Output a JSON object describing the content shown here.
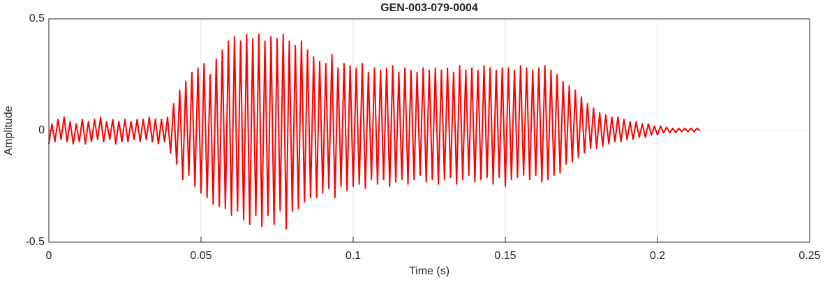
{
  "chart_data": {
    "type": "line",
    "title": "GEN-003-079-0004",
    "xlabel": "Time (s)",
    "ylabel": "Amplitude",
    "x": [
      0,
      0.001,
      0.002,
      0.003,
      0.004,
      0.005,
      0.006,
      0.007,
      0.008,
      0.009,
      0.01,
      0.011,
      0.012,
      0.013,
      0.014,
      0.015,
      0.016,
      0.017,
      0.018,
      0.019,
      0.02,
      0.021,
      0.022,
      0.023,
      0.024,
      0.025,
      0.026,
      0.027,
      0.028,
      0.029,
      0.03,
      0.031,
      0.032,
      0.033,
      0.034,
      0.035,
      0.036,
      0.037,
      0.038,
      0.039,
      0.04,
      0.041,
      0.042,
      0.043,
      0.044,
      0.045,
      0.046,
      0.047,
      0.048,
      0.049,
      0.05,
      0.051,
      0.052,
      0.053,
      0.054,
      0.055,
      0.056,
      0.057,
      0.058,
      0.059,
      0.06,
      0.061,
      0.062,
      0.063,
      0.064,
      0.065,
      0.066,
      0.067,
      0.068,
      0.069,
      0.07,
      0.071,
      0.072,
      0.073,
      0.074,
      0.075,
      0.076,
      0.077,
      0.078,
      0.079,
      0.08,
      0.081,
      0.082,
      0.083,
      0.084,
      0.085,
      0.086,
      0.087,
      0.088,
      0.089,
      0.09,
      0.091,
      0.092,
      0.093,
      0.094,
      0.095,
      0.096,
      0.097,
      0.098,
      0.099,
      0.1,
      0.101,
      0.102,
      0.103,
      0.104,
      0.105,
      0.106,
      0.107,
      0.108,
      0.109,
      0.11,
      0.111,
      0.112,
      0.113,
      0.114,
      0.115,
      0.116,
      0.117,
      0.118,
      0.119,
      0.12,
      0.121,
      0.122,
      0.123,
      0.124,
      0.125,
      0.126,
      0.127,
      0.128,
      0.129,
      0.13,
      0.131,
      0.132,
      0.133,
      0.134,
      0.135,
      0.136,
      0.137,
      0.138,
      0.139,
      0.14,
      0.141,
      0.142,
      0.143,
      0.144,
      0.145,
      0.146,
      0.147,
      0.148,
      0.149,
      0.15,
      0.151,
      0.152,
      0.153,
      0.154,
      0.155,
      0.156,
      0.157,
      0.158,
      0.159,
      0.16,
      0.161,
      0.162,
      0.163,
      0.164,
      0.165,
      0.166,
      0.167,
      0.168,
      0.169,
      0.17,
      0.171,
      0.172,
      0.173,
      0.174,
      0.175,
      0.176,
      0.177,
      0.178,
      0.179,
      0.18,
      0.181,
      0.182,
      0.183,
      0.184,
      0.185,
      0.186,
      0.187,
      0.188,
      0.189,
      0.19,
      0.191,
      0.192,
      0.193,
      0.194,
      0.195,
      0.196,
      0.197,
      0.198,
      0.199,
      0.2,
      0.201,
      0.202,
      0.203,
      0.204,
      0.205,
      0.206,
      0.207,
      0.208,
      0.209,
      0.21,
      0.211,
      0.212,
      0.213,
      0.214
    ],
    "values": [
      -0.06,
      0.03,
      -0.05,
      0.05,
      -0.04,
      0.06,
      -0.05,
      0.04,
      -0.06,
      0.03,
      -0.05,
      0.05,
      -0.06,
      0.04,
      -0.05,
      0.05,
      -0.04,
      0.06,
      -0.05,
      0.04,
      -0.04,
      0.05,
      -0.06,
      0.04,
      -0.05,
      0.05,
      -0.05,
      0.04,
      -0.04,
      0.05,
      -0.05,
      0.05,
      -0.04,
      0.06,
      -0.05,
      0.05,
      -0.06,
      0.05,
      -0.05,
      0.06,
      -0.1,
      0.12,
      -0.15,
      0.18,
      -0.22,
      0.22,
      -0.2,
      0.26,
      -0.25,
      0.28,
      -0.28,
      0.3,
      -0.3,
      0.25,
      -0.33,
      0.32,
      -0.34,
      0.36,
      -0.35,
      0.4,
      -0.38,
      0.42,
      -0.36,
      0.4,
      -0.4,
      0.43,
      -0.42,
      0.41,
      -0.38,
      0.43,
      -0.43,
      0.4,
      -0.38,
      0.42,
      -0.42,
      0.41,
      -0.36,
      0.43,
      -0.44,
      0.4,
      -0.36,
      0.38,
      -0.35,
      0.4,
      -0.32,
      0.36,
      -0.3,
      0.33,
      -0.3,
      0.31,
      -0.28,
      0.3,
      -0.26,
      0.34,
      -0.3,
      0.28,
      -0.25,
      0.3,
      -0.27,
      0.29,
      -0.25,
      0.28,
      -0.24,
      0.3,
      -0.26,
      0.26,
      -0.22,
      0.28,
      -0.24,
      0.27,
      -0.22,
      0.28,
      -0.25,
      0.29,
      -0.23,
      0.26,
      -0.22,
      0.28,
      -0.24,
      0.27,
      -0.22,
      0.26,
      -0.2,
      0.28,
      -0.23,
      0.27,
      -0.22,
      0.28,
      -0.24,
      0.27,
      -0.22,
      0.28,
      -0.21,
      0.26,
      -0.24,
      0.29,
      -0.22,
      0.27,
      -0.2,
      0.28,
      -0.23,
      0.27,
      -0.22,
      0.29,
      -0.21,
      0.28,
      -0.24,
      0.27,
      -0.21,
      0.28,
      -0.25,
      0.28,
      -0.22,
      0.27,
      -0.21,
      0.29,
      -0.2,
      0.28,
      -0.22,
      0.27,
      -0.2,
      0.28,
      -0.23,
      0.29,
      -0.22,
      0.27,
      -0.2,
      0.25,
      -0.19,
      0.22,
      -0.15,
      0.2,
      -0.14,
      0.18,
      -0.12,
      0.15,
      -0.1,
      0.12,
      -0.08,
      0.1,
      -0.08,
      0.08,
      -0.07,
      0.07,
      -0.06,
      0.06,
      -0.05,
      0.06,
      -0.05,
      0.05,
      -0.04,
      0.04,
      -0.04,
      0.04,
      -0.03,
      0.03,
      -0.03,
      0.03,
      -0.02,
      0.02,
      -0.02,
      0.02,
      -0.01,
      0.015,
      -0.01,
      0.01,
      -0.01,
      0.01,
      -0.005,
      0.01,
      -0.005,
      0.01,
      -0.005,
      0.01,
      0
    ],
    "color": "#ff0000",
    "xlim": [
      0,
      0.25
    ],
    "xticks": [
      0,
      0.05,
      0.1,
      0.15,
      0.2,
      0.25
    ],
    "ylim": [
      -0.5,
      0.5
    ],
    "yticks": [
      -0.5,
      0,
      0.5
    ],
    "grid": true
  }
}
